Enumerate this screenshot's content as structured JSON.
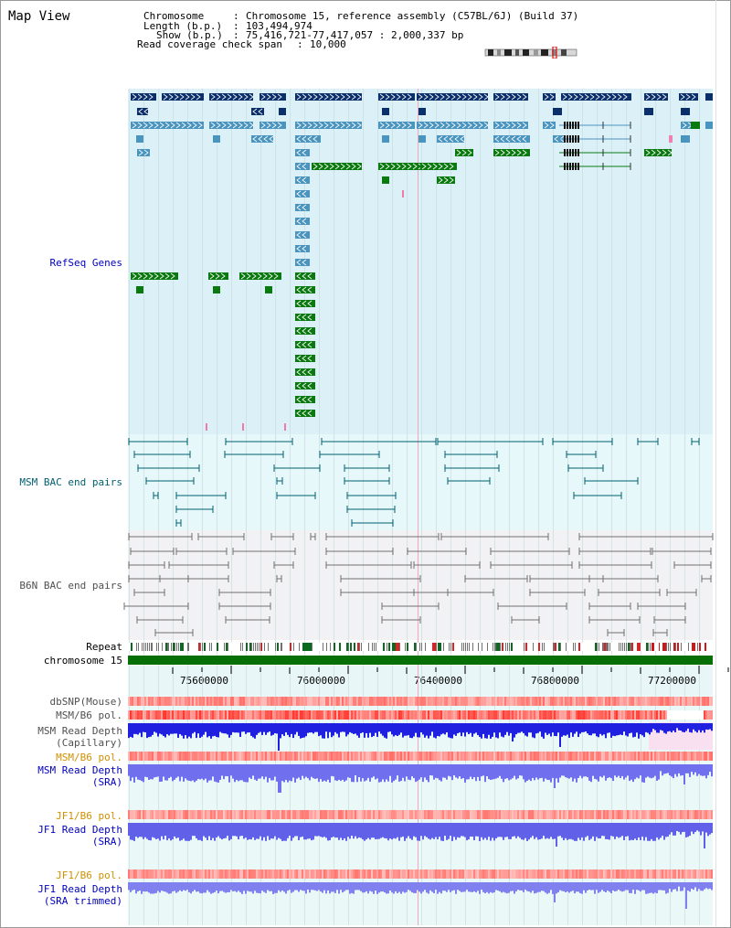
{
  "page_title": "Map View",
  "info": {
    "chromosome_key": "Chromosome",
    "chromosome_value": "Chromosome 15, reference assembly (C57BL/6J) (Build 37)",
    "length_key": "Length (b.p.)",
    "length_value": "103,494,974",
    "show_key": "Show (b.p.)",
    "show_value": "75,416,721-77,417,057 : 2,000,337 bp",
    "span_key": "Read coverage check span",
    "span_value": "10,000"
  },
  "tracks": {
    "refseq": "RefSeq Genes",
    "msm_bac": "MSM BAC end pairs",
    "b6n_bac": "B6N BAC end pairs",
    "repeat": "Repeat",
    "chromosome": "chromosome 15",
    "dbsnp": "dbSNP(Mouse)",
    "msm_b6_pol": "MSM/B6 pol.",
    "msm_depth_cap_1": "MSM Read Depth",
    "msm_depth_cap_2": "(Capillary)",
    "msm_b6_pol_2": "MSM/B6 pol.",
    "msm_depth_sra_1": "MSM Read Depth",
    "msm_depth_sra_2": "(SRA)",
    "jf1_b6_pol": "JF1/B6 pol.",
    "jf1_depth_1": "JF1 Read Depth",
    "jf1_depth_2": "(SRA)",
    "jf1_b6_pol_2": "JF1/B6 pol.",
    "jf1_trim_1": "JF1 Read Depth",
    "jf1_trim_2": "(SRA trimmed)"
  },
  "axis_ticks": [
    "75600000",
    "76000000",
    "76400000",
    "76800000",
    "77200000"
  ],
  "colors": {
    "gene_navy": "#0a2f6a",
    "gene_steel": "#4a94c0",
    "gene_green": "#0a7a10",
    "label_blue": "#0000c0",
    "label_teal": "#006070",
    "label_gray": "#505050",
    "label_orange": "#d09000",
    "chromosome_green": "#067006"
  }
}
